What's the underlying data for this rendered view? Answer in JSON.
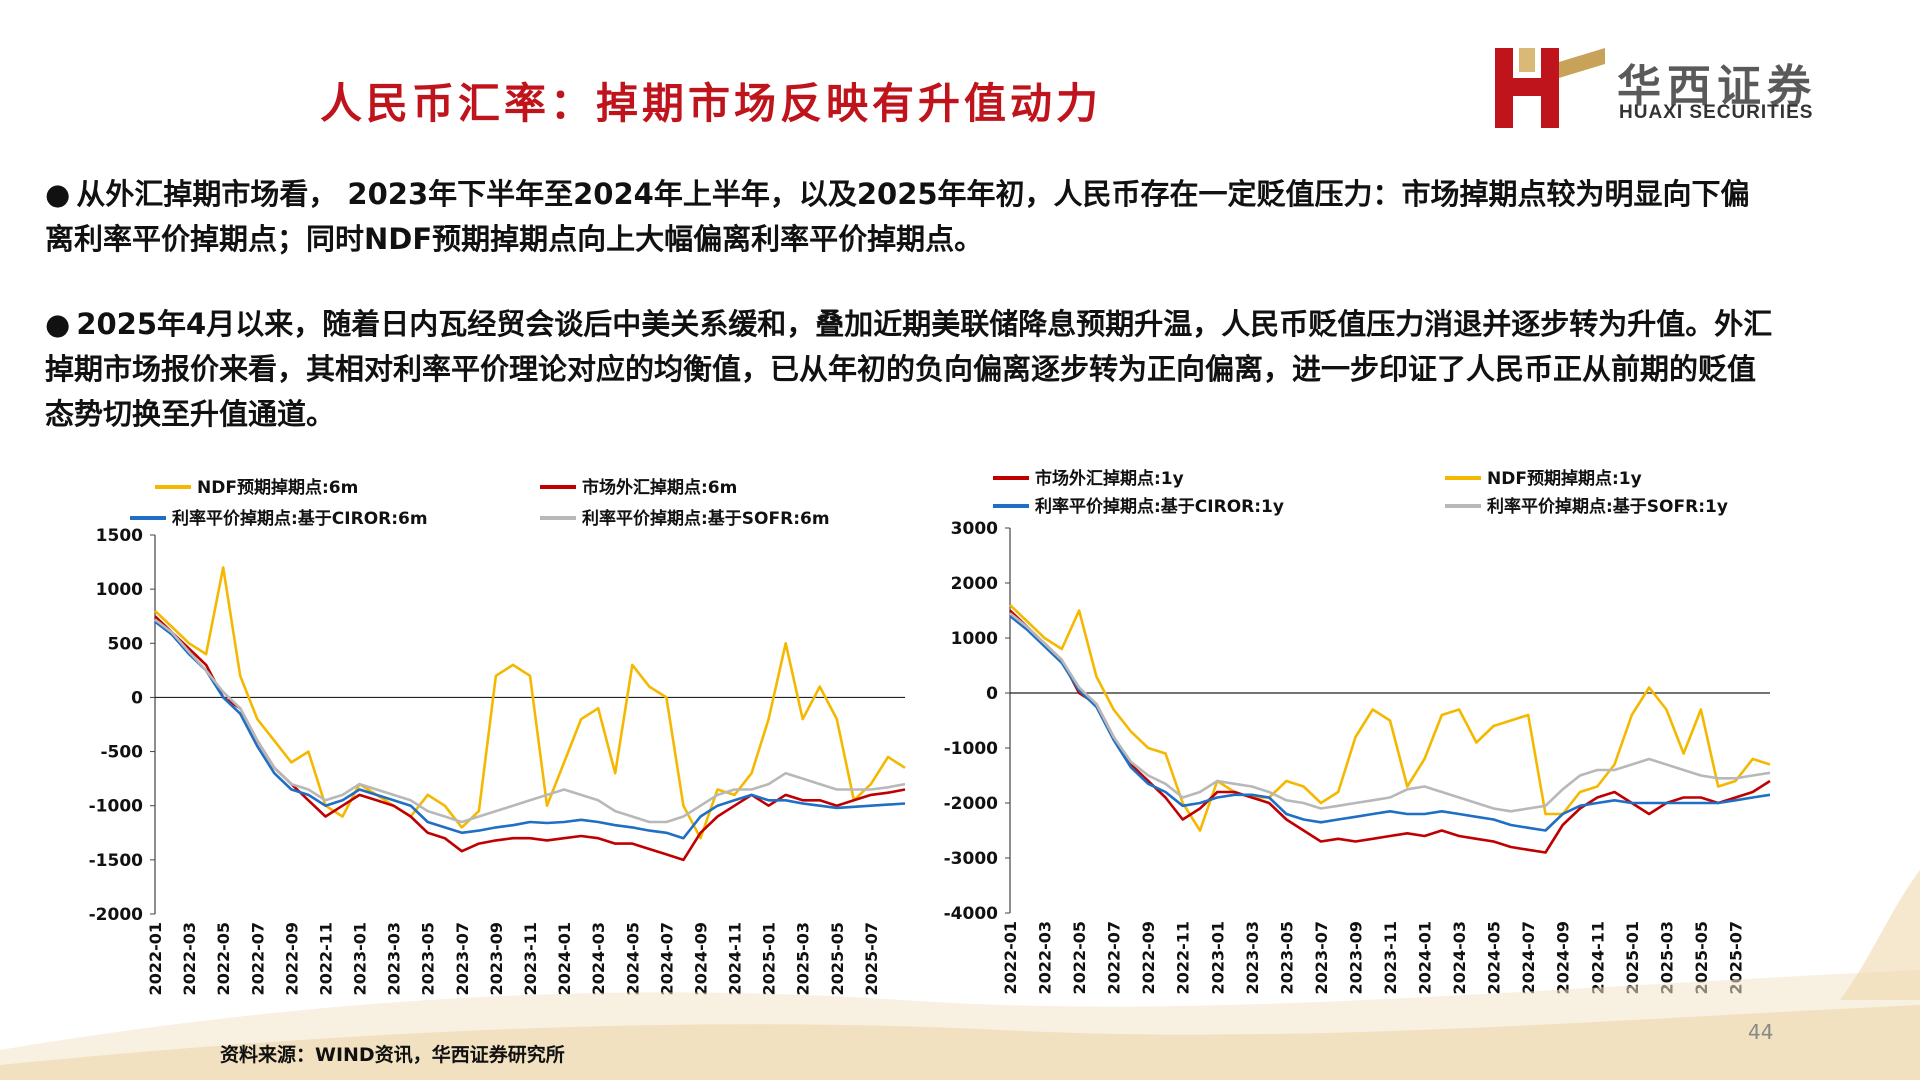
{
  "slide": {
    "title": "人民币汇率：掉期市场反映有升值动力",
    "logo_cn": "华西证券",
    "logo_en": "HUAXI SECURITIES",
    "bullet_1": "从外汇掉期市场看， 2023年下半年至2024年上半年，以及2025年年初，人民币存在一定贬值压力：市场掉期点较为明显向下偏离利率平价掉期点；同时NDF预期掉期点向上大幅偏离利率平价掉期点。",
    "bullet_2": "2025年4月以来，随着日内瓦经贸会谈后中美关系缓和，叠加近期美联储降息预期升温，人民币贬值压力消退并逐步转为升值。外汇掉期市场报价来看，其相对利率平价理论对应的均衡值，已从年初的负向偏离逐步转为正向偏离，进一步印证了人民币正从前期的贬值态势切换至升值通道。",
    "bullet_symbol": "●",
    "source": "资料来源：WIND资讯，华西证券研究所",
    "page_number": "44",
    "colors": {
      "title": "#c0141c",
      "ndf": "#f5b800",
      "market": "#c00000",
      "ciror": "#1f6fc5",
      "sofr": "#b8b8b8"
    }
  },
  "chart_data": [
    {
      "type": "line",
      "ylim": [
        -2000,
        1500
      ],
      "yticks": [
        "1500",
        "1000",
        "500",
        "0",
        "-500",
        "-1000",
        "-1500",
        "-2000"
      ],
      "x_tick_labels": [
        "2022-01",
        "2022-03",
        "2022-05",
        "2022-07",
        "2022-09",
        "2022-11",
        "2023-01",
        "2023-03",
        "2023-05",
        "2023-07",
        "2023-09",
        "2023-11",
        "2024-01",
        "2024-03",
        "2024-05",
        "2024-07",
        "2024-09",
        "2024-11",
        "2025-01",
        "2025-03",
        "2025-05",
        "2025-07"
      ],
      "x": [
        "2022-01",
        "2022-02",
        "2022-03",
        "2022-04",
        "2022-05",
        "2022-06",
        "2022-07",
        "2022-08",
        "2022-09",
        "2022-10",
        "2022-11",
        "2022-12",
        "2023-01",
        "2023-02",
        "2023-03",
        "2023-04",
        "2023-05",
        "2023-06",
        "2023-07",
        "2023-08",
        "2023-09",
        "2023-10",
        "2023-11",
        "2023-12",
        "2024-01",
        "2024-02",
        "2024-03",
        "2024-04",
        "2024-05",
        "2024-06",
        "2024-07",
        "2024-08",
        "2024-09",
        "2024-10",
        "2024-11",
        "2024-12",
        "2025-01",
        "2025-02",
        "2025-03",
        "2025-04",
        "2025-05",
        "2025-06",
        "2025-07",
        "2025-08",
        "2025-09"
      ],
      "series": [
        {
          "name": "NDF预期掉期点:6m",
          "color": "#f5b800",
          "values": [
            800,
            650,
            500,
            400,
            1200,
            200,
            -200,
            -400,
            -600,
            -500,
            -1000,
            -1100,
            -800,
            -900,
            -1000,
            -1100,
            -900,
            -1000,
            -1200,
            -1050,
            200,
            300,
            200,
            -1000,
            -600,
            -200,
            -100,
            -700,
            300,
            100,
            0,
            -1000,
            -1300,
            -850,
            -900,
            -700,
            -200,
            500,
            -200,
            100,
            -200,
            -950,
            -800,
            -550,
            -650
          ]
        },
        {
          "name": "市场外汇掉期点:6m",
          "color": "#c00000",
          "values": [
            750,
            600,
            450,
            300,
            0,
            -100,
            -400,
            -650,
            -800,
            -950,
            -1100,
            -1000,
            -900,
            -950,
            -1000,
            -1100,
            -1250,
            -1300,
            -1420,
            -1350,
            -1320,
            -1300,
            -1300,
            -1320,
            -1300,
            -1280,
            -1300,
            -1350,
            -1350,
            -1400,
            -1450,
            -1500,
            -1250,
            -1100,
            -1000,
            -900,
            -1000,
            -900,
            -950,
            -950,
            -1000,
            -950,
            -900,
            -880,
            -850
          ]
        },
        {
          "name": "利率平价掉期点:基于CIROR:6m",
          "color": "#1f6fc5",
          "values": [
            700,
            580,
            400,
            250,
            0,
            -150,
            -450,
            -700,
            -850,
            -900,
            -1000,
            -950,
            -850,
            -900,
            -950,
            -1000,
            -1150,
            -1200,
            -1250,
            -1230,
            -1200,
            -1180,
            -1150,
            -1160,
            -1150,
            -1130,
            -1150,
            -1180,
            -1200,
            -1230,
            -1250,
            -1300,
            -1100,
            -1000,
            -950,
            -900,
            -950,
            -950,
            -980,
            -1000,
            -1020,
            -1010,
            -1000,
            -990,
            -980
          ]
        },
        {
          "name": "利率平价掉期点:基于SOFR:6m",
          "color": "#b8b8b8",
          "values": [
            720,
            600,
            420,
            250,
            50,
            -100,
            -400,
            -650,
            -800,
            -850,
            -950,
            -900,
            -800,
            -850,
            -900,
            -950,
            -1050,
            -1100,
            -1150,
            -1100,
            -1050,
            -1000,
            -950,
            -900,
            -850,
            -900,
            -950,
            -1050,
            -1100,
            -1150,
            -1150,
            -1100,
            -1000,
            -900,
            -850,
            -850,
            -800,
            -700,
            -750,
            -800,
            -850,
            -850,
            -850,
            -830,
            -800
          ]
        }
      ]
    },
    {
      "type": "line",
      "ylim": [
        -4000,
        3000
      ],
      "yticks": [
        "3000",
        "2000",
        "1000",
        "0",
        "-1000",
        "-2000",
        "-3000",
        "-4000"
      ],
      "x_tick_labels": [
        "2022-01",
        "2022-03",
        "2022-05",
        "2022-07",
        "2022-09",
        "2022-11",
        "2023-01",
        "2023-03",
        "2023-05",
        "2023-07",
        "2023-09",
        "2023-11",
        "2024-01",
        "2024-03",
        "2024-05",
        "2024-07",
        "2024-09",
        "2024-11",
        "2025-01",
        "2025-03",
        "2025-05",
        "2025-07"
      ],
      "x": [
        "2022-01",
        "2022-02",
        "2022-03",
        "2022-04",
        "2022-05",
        "2022-06",
        "2022-07",
        "2022-08",
        "2022-09",
        "2022-10",
        "2022-11",
        "2022-12",
        "2023-01",
        "2023-02",
        "2023-03",
        "2023-04",
        "2023-05",
        "2023-06",
        "2023-07",
        "2023-08",
        "2023-09",
        "2023-10",
        "2023-11",
        "2023-12",
        "2024-01",
        "2024-02",
        "2024-03",
        "2024-04",
        "2024-05",
        "2024-06",
        "2024-07",
        "2024-08",
        "2024-09",
        "2024-10",
        "2024-11",
        "2024-12",
        "2025-01",
        "2025-02",
        "2025-03",
        "2025-04",
        "2025-05",
        "2025-06",
        "2025-07",
        "2025-08",
        "2025-09"
      ],
      "series": [
        {
          "name": "市场外汇掉期点:1y",
          "color": "#c00000",
          "values": [
            1500,
            1200,
            900,
            600,
            0,
            -200,
            -800,
            -1300,
            -1600,
            -1900,
            -2300,
            -2100,
            -1800,
            -1800,
            -1900,
            -2000,
            -2300,
            -2500,
            -2700,
            -2650,
            -2700,
            -2650,
            -2600,
            -2550,
            -2600,
            -2500,
            -2600,
            -2650,
            -2700,
            -2800,
            -2850,
            -2900,
            -2400,
            -2100,
            -1900,
            -1800,
            -2000,
            -2200,
            -2000,
            -1900,
            -1900,
            -2000,
            -1900,
            -1800,
            -1600
          ]
        },
        {
          "name": "NDF预期掉期点:1y",
          "color": "#f5b800",
          "values": [
            1600,
            1300,
            1000,
            800,
            1500,
            300,
            -300,
            -700,
            -1000,
            -1100,
            -2000,
            -2500,
            -1600,
            -1800,
            -1900,
            -1900,
            -1600,
            -1700,
            -2000,
            -1800,
            -800,
            -300,
            -500,
            -1700,
            -1200,
            -400,
            -300,
            -900,
            -600,
            -500,
            -400,
            -2200,
            -2200,
            -1800,
            -1700,
            -1300,
            -400,
            100,
            -300,
            -1100,
            -300,
            -1700,
            -1600,
            -1200,
            -1300
          ]
        },
        {
          "name": "利率平价掉期点:基于CIROR:1y",
          "color": "#1f6fc5",
          "values": [
            1400,
            1150,
            850,
            550,
            50,
            -250,
            -850,
            -1350,
            -1650,
            -1800,
            -2050,
            -2000,
            -1900,
            -1850,
            -1850,
            -1900,
            -2200,
            -2300,
            -2350,
            -2300,
            -2250,
            -2200,
            -2150,
            -2200,
            -2200,
            -2150,
            -2200,
            -2250,
            -2300,
            -2400,
            -2450,
            -2500,
            -2200,
            -2050,
            -2000,
            -1950,
            -2000,
            -2000,
            -2000,
            -2000,
            -2000,
            -2000,
            -1950,
            -1900,
            -1850
          ]
        },
        {
          "name": "利率平价掉期点:基于SOFR:1y",
          "color": "#b8b8b8",
          "values": [
            1450,
            1200,
            900,
            600,
            100,
            -200,
            -800,
            -1250,
            -1500,
            -1650,
            -1900,
            -1800,
            -1600,
            -1650,
            -1700,
            -1800,
            -1950,
            -2000,
            -2100,
            -2050,
            -2000,
            -1950,
            -1900,
            -1750,
            -1700,
            -1800,
            -1900,
            -2000,
            -2100,
            -2150,
            -2100,
            -2050,
            -1750,
            -1500,
            -1400,
            -1400,
            -1300,
            -1200,
            -1300,
            -1400,
            -1500,
            -1550,
            -1550,
            -1500,
            -1450
          ]
        }
      ]
    }
  ]
}
